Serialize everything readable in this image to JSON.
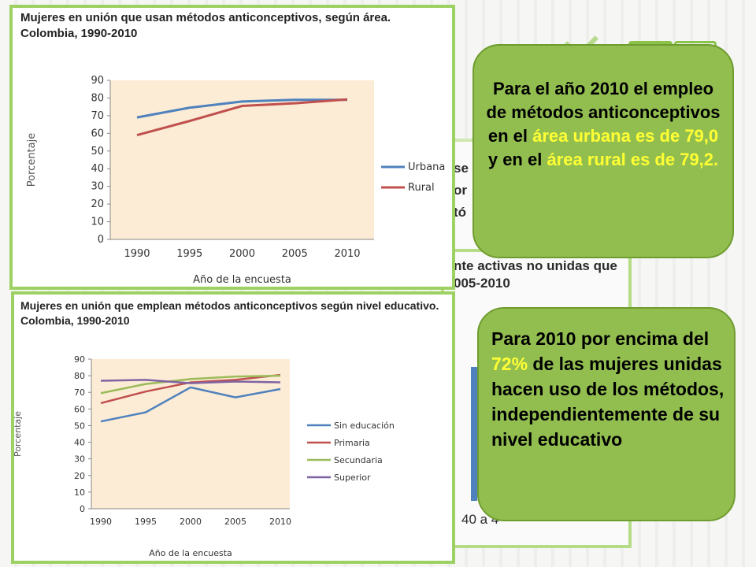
{
  "background": {
    "snippet_lines": [
      "se",
      "or",
      "tó"
    ],
    "snippet2_lines": [
      "nte activas no unidas que",
      "005-2010"
    ],
    "bar_axis_label": "40 a 4"
  },
  "chart_data": [
    {
      "type": "line",
      "title": "Mujeres en unión que usan métodos anticonceptivos, según área.",
      "subtitle": "Colombia, 1990-2010",
      "xlabel": "Año de la encuesta",
      "ylabel": "Porcentaje",
      "categories": [
        "1990",
        "1995",
        "2000",
        "2005",
        "2010"
      ],
      "y_ticks": [
        "0",
        "10",
        "20",
        "30",
        "40",
        "50",
        "60",
        "70",
        "80",
        "90"
      ],
      "ylim": [
        0,
        90
      ],
      "grid": false,
      "legend_position": "right",
      "plot_background": "#fcecd6",
      "series": [
        {
          "name": "Urbana",
          "color": "#4f81bd",
          "values": [
            69,
            74.5,
            78,
            79,
            79
          ]
        },
        {
          "name": "Rural",
          "color": "#c0504d",
          "values": [
            59,
            67,
            75.5,
            77,
            79.2
          ]
        }
      ]
    },
    {
      "type": "line",
      "title": "Mujeres en unión que emplean métodos anticonceptivos según nivel educativo.",
      "subtitle": "Colombia, 1990-2010",
      "xlabel": "Año de la encuesta",
      "ylabel": "Porcentaje",
      "categories": [
        "1990",
        "1995",
        "2000",
        "2005",
        "2010"
      ],
      "y_ticks": [
        "0",
        "10",
        "20",
        "30",
        "40",
        "50",
        "60",
        "70",
        "80",
        "90"
      ],
      "ylim": [
        0,
        90
      ],
      "grid": false,
      "legend_position": "right",
      "plot_background": "#fcecd6",
      "series": [
        {
          "name": "Sin educación",
          "color": "#4f81bd",
          "values": [
            52.5,
            58,
            73,
            67,
            72
          ]
        },
        {
          "name": "Primaria",
          "color": "#c0504d",
          "values": [
            63.5,
            70.5,
            76,
            77.5,
            80.5
          ]
        },
        {
          "name": "Secundaria",
          "color": "#9bbb59",
          "values": [
            69.5,
            75,
            78,
            79.5,
            80
          ]
        },
        {
          "name": "Superior",
          "color": "#8064a2",
          "values": [
            77,
            77.5,
            75.5,
            76.5,
            76
          ]
        }
      ]
    }
  ],
  "callouts": {
    "urban_rural": {
      "part1": "Para el año 2010 el empleo de métodos anticonceptivos en el ",
      "hl1": "área urbana es de 79,0",
      "part2": " y en el ",
      "hl2": "área rural es de 79,2."
    },
    "education": {
      "part1": "Para 2010 por encima del ",
      "hl1": "72%",
      "part2": " de las mujeres unidas hacen uso de los métodos, independientemente de su nivel educativo"
    }
  },
  "colors": {
    "panel_border": "#9ed164",
    "bubble_fill": "#92be50",
    "highlight": "#ffff33"
  }
}
